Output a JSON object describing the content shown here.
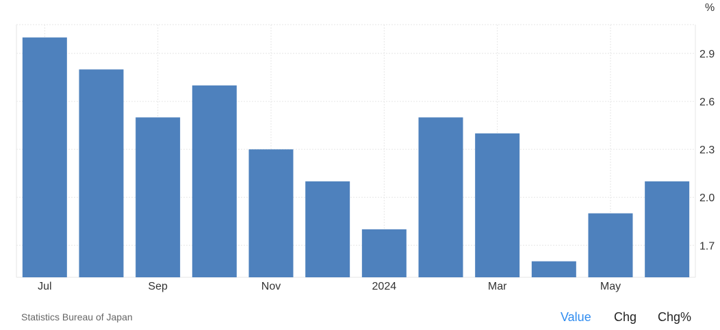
{
  "chart_data": {
    "type": "bar",
    "categories": [
      "Jul 2023",
      "Aug 2023",
      "Sep 2023",
      "Oct 2023",
      "Nov 2023",
      "Dec 2023",
      "Jan 2024",
      "Feb 2024",
      "Mar 2024",
      "Apr 2024",
      "May 2024",
      "Jun 2024"
    ],
    "values": [
      3.0,
      2.8,
      2.5,
      2.7,
      2.3,
      2.1,
      1.8,
      2.5,
      2.4,
      1.6,
      1.9,
      2.1
    ],
    "x_tick_labels": [
      "Jul",
      "Sep",
      "Nov",
      "2024",
      "Mar",
      "May"
    ],
    "y_ticks": [
      1.7,
      2.0,
      2.3,
      2.6,
      2.9
    ],
    "y_tick_labels": [
      "1.7",
      "2.0",
      "2.3",
      "2.6",
      "2.9"
    ],
    "yunit": "%",
    "ylim": [
      1.5,
      3.08
    ],
    "grid": true,
    "bar_color": "#4e81bd"
  },
  "footer": {
    "source": "Statistics Bureau of Japan",
    "toggles": [
      "Value",
      "Chg",
      "Chg%"
    ],
    "active_color": "#2f8cf0"
  }
}
